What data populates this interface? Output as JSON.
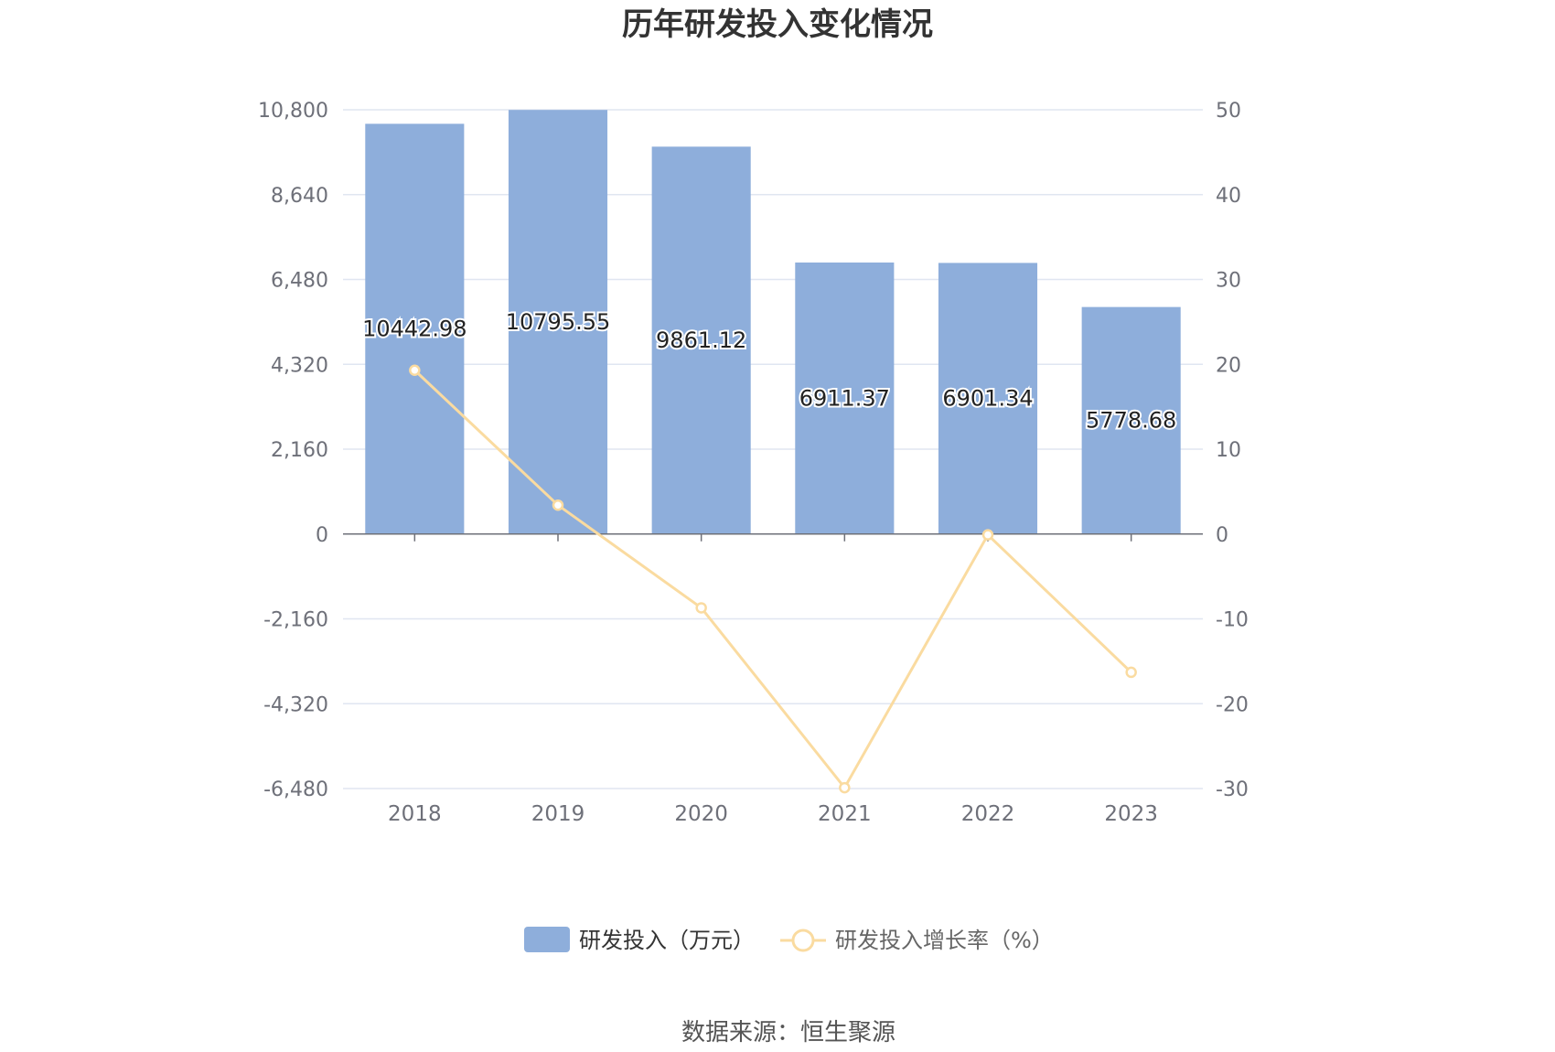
{
  "chart_data": {
    "type": "bar",
    "title": "历年研发投入变化情况",
    "categories": [
      "2018",
      "2019",
      "2020",
      "2021",
      "2022",
      "2023"
    ],
    "series": [
      {
        "name": "研发投入（万元）",
        "type": "bar",
        "axis": "left",
        "color": "#8eaedb",
        "values": [
          10442.98,
          10795.55,
          9861.12,
          6911.37,
          6901.34,
          5778.68
        ],
        "labels": [
          "10442.98",
          "10795.55",
          "9861.12",
          "6911.37",
          "6901.34",
          "5778.68"
        ]
      },
      {
        "name": "研发投入增长率（%）",
        "type": "line",
        "axis": "right",
        "color": "#fadba0",
        "values": [
          19.3,
          3.4,
          -8.7,
          -29.9,
          -0.1,
          -16.3
        ]
      }
    ],
    "y_left": {
      "ylim": [
        -6480,
        10800
      ],
      "ticks": [
        -6480,
        -4320,
        -2160,
        0,
        2160,
        4320,
        6480,
        8640,
        10800
      ],
      "tick_labels": [
        "-6,480",
        "-4,320",
        "-2,160",
        "0",
        "2,160",
        "4,320",
        "6,480",
        "8,640",
        "10,800"
      ]
    },
    "y_right": {
      "ylim": [
        -30,
        50
      ],
      "ticks": [
        -30,
        -20,
        -10,
        0,
        10,
        20,
        30,
        40,
        50
      ],
      "tick_labels": [
        "-30",
        "-20",
        "-10",
        "0",
        "10",
        "20",
        "30",
        "40",
        "50"
      ]
    },
    "grid": true,
    "legend_position": "bottom-center"
  },
  "source": "数据来源：恒生聚源"
}
